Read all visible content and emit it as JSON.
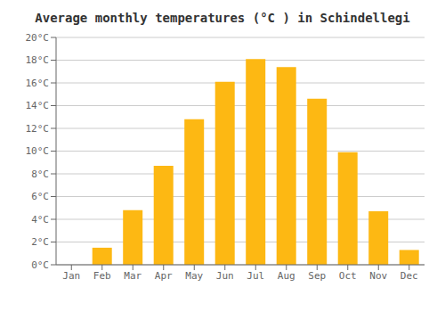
{
  "chart_data": {
    "type": "bar",
    "title": "Average monthly temperatures (°C ) in Schindellegi",
    "categories": [
      "Jan",
      "Feb",
      "Mar",
      "Apr",
      "May",
      "Jun",
      "Jul",
      "Aug",
      "Sep",
      "Oct",
      "Nov",
      "Dec"
    ],
    "values": [
      0.0,
      1.5,
      4.8,
      8.7,
      12.8,
      16.1,
      18.1,
      17.4,
      14.6,
      9.9,
      4.7,
      1.3
    ],
    "color": "#FDB813",
    "ylim": [
      0,
      20
    ],
    "yticks": [
      {
        "value": 0,
        "label": "0°C"
      },
      {
        "value": 2,
        "label": "2°C"
      },
      {
        "value": 4,
        "label": "4°C"
      },
      {
        "value": 6,
        "label": "6°C"
      },
      {
        "value": 8,
        "label": "8°C"
      },
      {
        "value": 10,
        "label": "10°C"
      },
      {
        "value": 12,
        "label": "12°C"
      },
      {
        "value": 14,
        "label": "14°C"
      },
      {
        "value": 16,
        "label": "16°C"
      },
      {
        "value": 18,
        "label": "18°C"
      },
      {
        "value": 20,
        "label": "20°C"
      }
    ],
    "grid": true
  }
}
